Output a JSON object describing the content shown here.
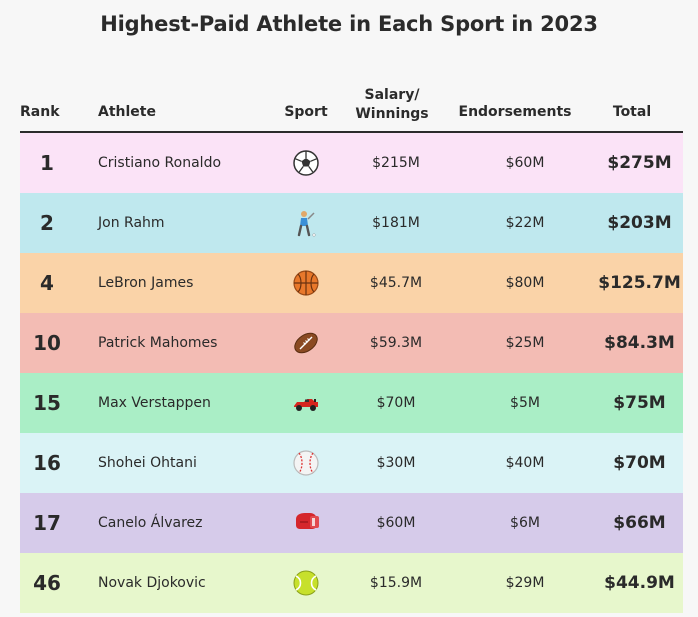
{
  "title": "Highest-Paid Athlete in Each Sport in 2023",
  "columns": {
    "rank": "Rank",
    "athlete": "Athlete",
    "sport": "Sport",
    "salary_line1": "Salary/",
    "salary_line2": "Winnings",
    "endorsements": "Endorsements",
    "total": "Total"
  },
  "chart_data": {
    "type": "table",
    "title": "Highest-Paid Athlete in Each Sport in 2023",
    "columns": [
      "Rank",
      "Athlete",
      "Sport",
      "Salary/ Winnings",
      "Endorsements",
      "Total"
    ],
    "rows": [
      {
        "rank": "1",
        "athlete": "Cristiano Ronaldo",
        "sport_icon": "soccer-ball-icon",
        "salary": "$215M",
        "endorsements": "$60M",
        "total": "$275M",
        "color": "#fbe3f7"
      },
      {
        "rank": "2",
        "athlete": "Jon Rahm",
        "sport_icon": "golfer-icon",
        "salary": "$181M",
        "endorsements": "$22M",
        "total": "$203M",
        "color": "#bfe8ee"
      },
      {
        "rank": "4",
        "athlete": "LeBron James",
        "sport_icon": "basketball-icon",
        "salary": "$45.7M",
        "endorsements": "$80M",
        "total": "$125.7M",
        "color": "#fad3a8"
      },
      {
        "rank": "10",
        "athlete": "Patrick Mahomes",
        "sport_icon": "football-icon",
        "salary": "$59.3M",
        "endorsements": "$25M",
        "total": "$84.3M",
        "color": "#f3bcb4"
      },
      {
        "rank": "15",
        "athlete": "Max Verstappen",
        "sport_icon": "race-car-icon",
        "salary": "$70M",
        "endorsements": "$5M",
        "total": "$75M",
        "color": "#aaeec6"
      },
      {
        "rank": "16",
        "athlete": "Shohei Ohtani",
        "sport_icon": "baseball-icon",
        "salary": "$30M",
        "endorsements": "$40M",
        "total": "$70M",
        "color": "#daf3f6"
      },
      {
        "rank": "17",
        "athlete": "Canelo Álvarez",
        "sport_icon": "boxing-glove-icon",
        "salary": "$60M",
        "endorsements": "$6M",
        "total": "$66M",
        "color": "#d6cbea"
      },
      {
        "rank": "46",
        "athlete": "Novak Djokovic",
        "sport_icon": "tennis-ball-icon",
        "salary": "$15.9M",
        "endorsements": "$29M",
        "total": "$44.9M",
        "color": "#e7f7cc"
      }
    ]
  }
}
